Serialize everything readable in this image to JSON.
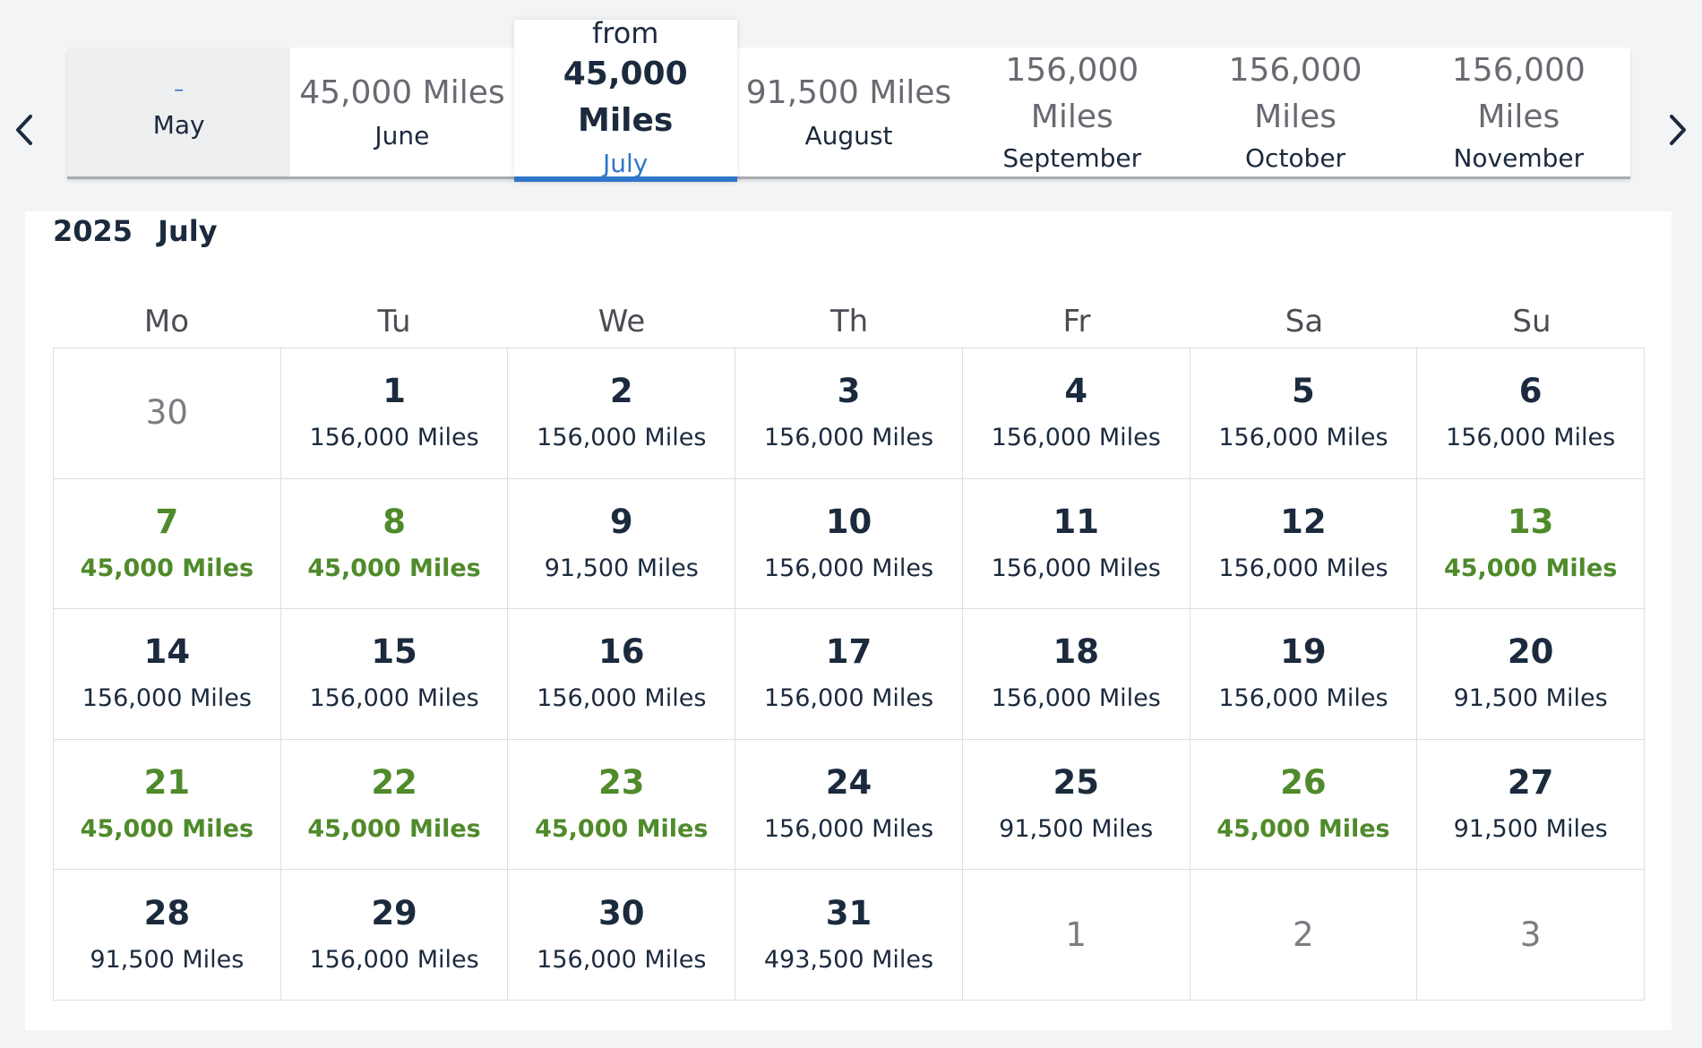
{
  "nav": {
    "prev_arrow": "chevron-left-icon",
    "next_arrow": "chevron-right-icon"
  },
  "month_strip": {
    "months": [
      {
        "price": "–",
        "name": "May"
      },
      {
        "price": "45,000 Miles",
        "name": "June"
      },
      {
        "prefix": "from",
        "price": "45,000 Miles",
        "name": "July"
      },
      {
        "price": "91,500 Miles",
        "name": "August"
      },
      {
        "price_line1": "156,000",
        "price_line2": "Miles",
        "name": "September"
      },
      {
        "price_line1": "156,000",
        "price_line2": "Miles",
        "name": "October"
      },
      {
        "price_line1": "156,000",
        "price_line2": "Miles",
        "name": "November"
      }
    ]
  },
  "calendar": {
    "year": "2025",
    "month": "July",
    "weekdays": [
      "Mo",
      "Tu",
      "We",
      "Th",
      "Fr",
      "Sa",
      "Su"
    ],
    "days": [
      {
        "num": "30",
        "miles": ""
      },
      {
        "num": "1",
        "miles": "156,000 Miles"
      },
      {
        "num": "2",
        "miles": "156,000 Miles"
      },
      {
        "num": "3",
        "miles": "156,000 Miles"
      },
      {
        "num": "4",
        "miles": "156,000 Miles"
      },
      {
        "num": "5",
        "miles": "156,000 Miles"
      },
      {
        "num": "6",
        "miles": "156,000 Miles"
      },
      {
        "num": "7",
        "miles": "45,000 Miles"
      },
      {
        "num": "8",
        "miles": "45,000 Miles"
      },
      {
        "num": "9",
        "miles": "91,500 Miles"
      },
      {
        "num": "10",
        "miles": "156,000 Miles"
      },
      {
        "num": "11",
        "miles": "156,000 Miles"
      },
      {
        "num": "12",
        "miles": "156,000 Miles"
      },
      {
        "num": "13",
        "miles": "45,000 Miles"
      },
      {
        "num": "14",
        "miles": "156,000 Miles"
      },
      {
        "num": "15",
        "miles": "156,000 Miles"
      },
      {
        "num": "16",
        "miles": "156,000 Miles"
      },
      {
        "num": "17",
        "miles": "156,000 Miles"
      },
      {
        "num": "18",
        "miles": "156,000 Miles"
      },
      {
        "num": "19",
        "miles": "156,000 Miles"
      },
      {
        "num": "20",
        "miles": "91,500 Miles"
      },
      {
        "num": "21",
        "miles": "45,000 Miles"
      },
      {
        "num": "22",
        "miles": "45,000 Miles"
      },
      {
        "num": "23",
        "miles": "45,000 Miles"
      },
      {
        "num": "24",
        "miles": "156,000 Miles"
      },
      {
        "num": "25",
        "miles": "91,500 Miles"
      },
      {
        "num": "26",
        "miles": "45,000 Miles"
      },
      {
        "num": "27",
        "miles": "91,500 Miles"
      },
      {
        "num": "28",
        "miles": "91,500 Miles"
      },
      {
        "num": "29",
        "miles": "156,000 Miles"
      },
      {
        "num": "30",
        "miles": "156,000 Miles"
      },
      {
        "num": "31",
        "miles": "493,500 Miles"
      },
      {
        "num": "1",
        "miles": ""
      },
      {
        "num": "2",
        "miles": ""
      },
      {
        "num": "3",
        "miles": ""
      }
    ]
  },
  "colors": {
    "accent_blue": "#2f75c9",
    "saver_green": "#4f8a2b",
    "text_dark": "#1b2a3d",
    "muted_gray": "#7a7d82"
  }
}
